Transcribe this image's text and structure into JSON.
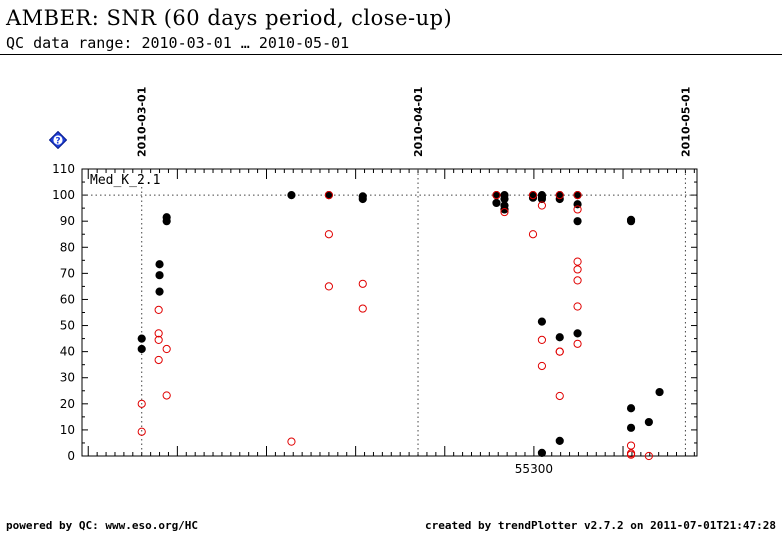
{
  "header": {
    "title": "AMBER: SNR (60 days period, close-up)",
    "subtitle": "QC data range: 2010-03-01 … 2010-05-01"
  },
  "footer": {
    "left": "powered by QC: www.eso.org/HC",
    "right": "created by trendPlotter v2.7.2 on 2011-07-01T21:47:28"
  },
  "help_icon": {
    "name": "help-icon",
    "symbol": "?"
  },
  "chart_data": {
    "type": "scatter",
    "series_label": "Med_K_2.1",
    "xlim": [
      55249.3,
      55318.3
    ],
    "ylim": [
      0,
      110
    ],
    "yticks": [
      0,
      10,
      20,
      30,
      40,
      50,
      60,
      70,
      80,
      90,
      100,
      110
    ],
    "xtick_label": {
      "x": 55300,
      "label": "55300"
    },
    "reference_line_y": 100,
    "date_markers": [
      {
        "label": "2010-03-01",
        "x": 55256
      },
      {
        "label": "2010-04-01",
        "x": 55287
      },
      {
        "label": "2010-05-01",
        "x": 55317
      }
    ],
    "colors": {
      "filled": "#000000",
      "open": "#e00000",
      "dotted": "#444444"
    },
    "series": [
      {
        "style": "filled",
        "color": "#000000",
        "points": [
          [
            55256.0,
            45
          ],
          [
            55256.0,
            41
          ],
          [
            55258.0,
            73.5
          ],
          [
            55258.0,
            69.3
          ],
          [
            55258.0,
            63
          ],
          [
            55258.8,
            91.5
          ],
          [
            55258.8,
            90
          ],
          [
            55272.8,
            100
          ],
          [
            55277.0,
            100
          ],
          [
            55280.8,
            99.5
          ],
          [
            55280.8,
            98.5
          ],
          [
            55295.8,
            100
          ],
          [
            55295.8,
            97
          ],
          [
            55296.7,
            100
          ],
          [
            55296.7,
            98.5
          ],
          [
            55296.7,
            96
          ],
          [
            55296.7,
            94.5
          ],
          [
            55299.9,
            100
          ],
          [
            55299.9,
            99
          ],
          [
            55300.9,
            100
          ],
          [
            55300.9,
            99.3
          ],
          [
            55300.9,
            98.5
          ],
          [
            55300.9,
            51.5
          ],
          [
            55300.9,
            1.2
          ],
          [
            55302.9,
            100
          ],
          [
            55302.9,
            98.5
          ],
          [
            55302.9,
            45.5
          ],
          [
            55302.9,
            5.8
          ],
          [
            55304.9,
            100
          ],
          [
            55304.9,
            96.5
          ],
          [
            55304.9,
            90
          ],
          [
            55304.9,
            47
          ],
          [
            55310.9,
            90.5
          ],
          [
            55310.9,
            90
          ],
          [
            55310.9,
            18.3
          ],
          [
            55310.9,
            10.8
          ],
          [
            55312.9,
            13
          ],
          [
            55314.1,
            24.5
          ]
        ]
      },
      {
        "style": "open",
        "color": "#e00000",
        "points": [
          [
            55256.0,
            20
          ],
          [
            55256.0,
            9.3
          ],
          [
            55257.9,
            56
          ],
          [
            55257.9,
            47
          ],
          [
            55257.9,
            44.5
          ],
          [
            55257.9,
            36.8
          ],
          [
            55258.8,
            41
          ],
          [
            55258.8,
            23.2
          ],
          [
            55272.8,
            5.5
          ],
          [
            55277.0,
            100
          ],
          [
            55277.0,
            85
          ],
          [
            55277.0,
            65
          ],
          [
            55280.8,
            66
          ],
          [
            55280.8,
            56.5
          ],
          [
            55295.8,
            100
          ],
          [
            55296.7,
            93.5
          ],
          [
            55299.9,
            100
          ],
          [
            55299.9,
            85
          ],
          [
            55300.9,
            96
          ],
          [
            55300.9,
            44.5
          ],
          [
            55300.9,
            34.5
          ],
          [
            55302.9,
            100
          ],
          [
            55302.9,
            40
          ],
          [
            55302.9,
            23
          ],
          [
            55302.9,
            40
          ],
          [
            55304.9,
            100
          ],
          [
            55304.9,
            94.5
          ],
          [
            55304.9,
            74.5
          ],
          [
            55304.9,
            71.5
          ],
          [
            55304.9,
            67.3
          ],
          [
            55304.9,
            57.3
          ],
          [
            55304.9,
            43
          ],
          [
            55310.9,
            4
          ],
          [
            55310.9,
            1
          ],
          [
            55310.9,
            0.5
          ],
          [
            55312.9,
            0
          ]
        ]
      }
    ]
  }
}
